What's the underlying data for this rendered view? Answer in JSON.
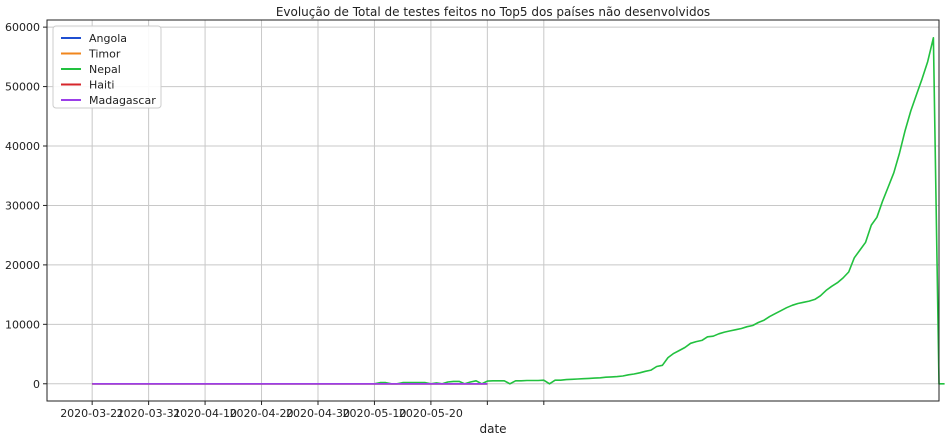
{
  "chart_data": {
    "type": "line",
    "title": "Evolução de Total de testes feitos no Top5 dos países não desenvolvidos",
    "xlabel": "date",
    "ylabel": "",
    "x_tick_labels": [
      "2020-03-21",
      "2020-03-31",
      "2020-04-10",
      "2020-04-20",
      "2020-04-30",
      "2020-05-10",
      "2020-05-20",
      "",
      ""
    ],
    "y_ticks": [
      0,
      10000,
      20000,
      30000,
      40000,
      50000,
      60000
    ],
    "ylim": [
      -2900,
      61200
    ],
    "xlim": [
      -8,
      150
    ],
    "grid": true,
    "legend_position": "top-left",
    "series": [
      {
        "name": "Angola",
        "color": "#1f4fd1",
        "points": [
          [
            0,
            0
          ],
          [
            70,
            0
          ]
        ]
      },
      {
        "name": "Timor",
        "color": "#f0861d",
        "points": [
          [
            0,
            0
          ],
          [
            70,
            0
          ]
        ]
      },
      {
        "name": "Nepal",
        "color": "#22c13f",
        "points": [
          [
            50,
            0
          ],
          [
            51,
            200
          ],
          [
            52,
            200
          ],
          [
            53,
            0
          ],
          [
            54,
            0
          ],
          [
            55,
            200
          ],
          [
            56,
            200
          ],
          [
            57,
            200
          ],
          [
            58,
            200
          ],
          [
            59,
            200
          ],
          [
            60,
            0
          ],
          [
            61,
            150
          ],
          [
            62,
            0
          ],
          [
            63,
            300
          ],
          [
            64,
            400
          ],
          [
            65,
            400
          ],
          [
            66,
            0
          ],
          [
            67,
            300
          ],
          [
            68,
            500
          ],
          [
            69,
            0
          ],
          [
            70,
            450
          ],
          [
            71,
            500
          ],
          [
            72,
            500
          ],
          [
            73,
            500
          ],
          [
            74,
            0
          ],
          [
            75,
            500
          ],
          [
            76,
            500
          ],
          [
            77,
            550
          ],
          [
            78,
            550
          ],
          [
            79,
            550
          ],
          [
            80,
            600
          ],
          [
            81,
            0
          ],
          [
            82,
            600
          ],
          [
            83,
            600
          ],
          [
            84,
            700
          ],
          [
            85,
            750
          ],
          [
            86,
            800
          ],
          [
            87,
            850
          ],
          [
            88,
            900
          ],
          [
            89,
            950
          ],
          [
            90,
            1000
          ],
          [
            91,
            1100
          ],
          [
            92,
            1150
          ],
          [
            93,
            1200
          ],
          [
            94,
            1300
          ],
          [
            95,
            1500
          ],
          [
            96,
            1650
          ],
          [
            97,
            1850
          ],
          [
            98,
            2100
          ],
          [
            99,
            2300
          ],
          [
            100,
            2900
          ],
          [
            101,
            3100
          ],
          [
            102,
            4400
          ],
          [
            103,
            5100
          ],
          [
            104,
            5600
          ],
          [
            105,
            6100
          ],
          [
            106,
            6800
          ],
          [
            107,
            7100
          ],
          [
            108,
            7300
          ],
          [
            109,
            7900
          ],
          [
            110,
            8000
          ],
          [
            111,
            8400
          ],
          [
            112,
            8700
          ],
          [
            113,
            8900
          ],
          [
            114,
            9100
          ],
          [
            115,
            9300
          ],
          [
            116,
            9600
          ],
          [
            117,
            9800
          ],
          [
            118,
            10300
          ],
          [
            119,
            10700
          ],
          [
            120,
            11300
          ],
          [
            121,
            11800
          ],
          [
            122,
            12300
          ],
          [
            123,
            12800
          ],
          [
            124,
            13200
          ],
          [
            125,
            13500
          ],
          [
            126,
            13700
          ],
          [
            127,
            13900
          ],
          [
            128,
            14200
          ],
          [
            129,
            14800
          ],
          [
            130,
            15700
          ],
          [
            131,
            16400
          ],
          [
            132,
            17000
          ],
          [
            133,
            17800
          ],
          [
            134,
            18800
          ],
          [
            135,
            21200
          ],
          [
            136,
            22500
          ],
          [
            137,
            23800
          ],
          [
            138,
            26700
          ],
          [
            139,
            28000
          ],
          [
            140,
            30700
          ],
          [
            141,
            33100
          ],
          [
            142,
            35500
          ],
          [
            143,
            38800
          ],
          [
            144,
            42600
          ],
          [
            145,
            45900
          ],
          [
            146,
            48600
          ],
          [
            147,
            51300
          ],
          [
            148,
            54200
          ],
          [
            149,
            58200
          ],
          [
            150,
            0
          ],
          [
            151,
            0
          ]
        ]
      },
      {
        "name": "Haiti",
        "color": "#d6262b",
        "points": [
          [
            0,
            0
          ],
          [
            70,
            0
          ]
        ]
      },
      {
        "name": "Madagascar",
        "color": "#9b3ee8",
        "points": [
          [
            0,
            0
          ],
          [
            70,
            0
          ]
        ]
      }
    ]
  }
}
